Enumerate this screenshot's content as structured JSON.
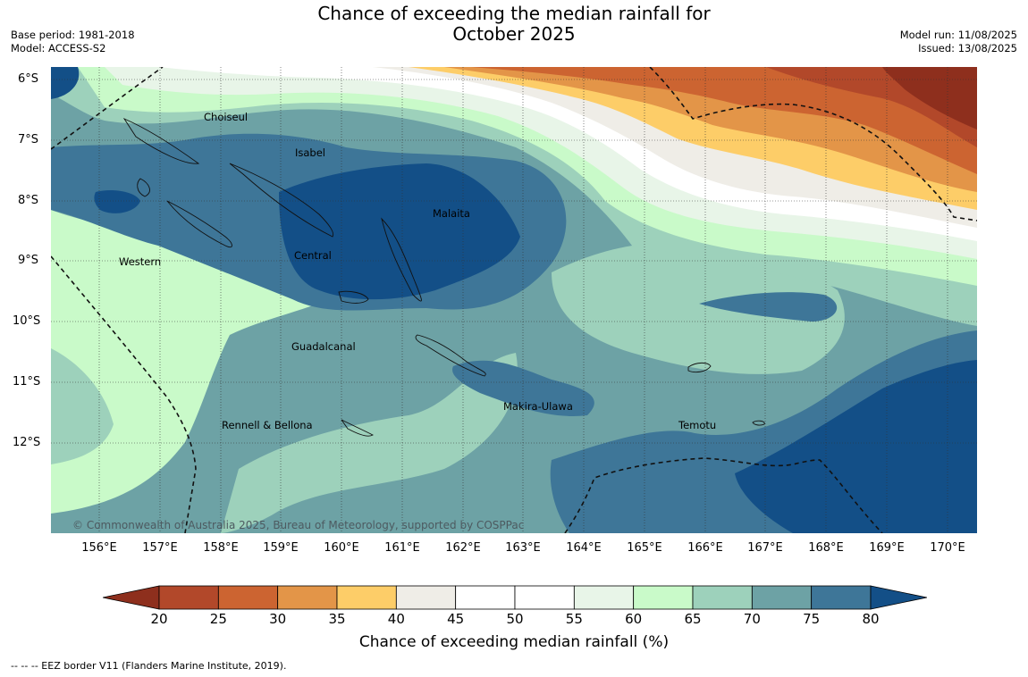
{
  "title": {
    "line1": "Chance of exceeding the median rainfall for",
    "line2": "October 2025"
  },
  "meta_left": {
    "base_period": "Base period: 1981-2018",
    "model": "Model: ACCESS-S2"
  },
  "meta_right": {
    "model_run": "Model run: 11/08/2025",
    "issued": "Issued: 13/08/2025"
  },
  "lat_labels": [
    "6°S",
    "7°S",
    "8°S",
    "9°S",
    "10°S",
    "11°S",
    "12°S"
  ],
  "lon_labels": [
    "156°E",
    "157°E",
    "158°E",
    "159°E",
    "160°E",
    "161°E",
    "162°E",
    "163°E",
    "164°E",
    "165°E",
    "166°E",
    "167°E",
    "168°E",
    "169°E",
    "170°E"
  ],
  "places": {
    "choiseul": "Choiseul",
    "isabel": "Isabel",
    "malaita": "Malaita",
    "central": "Central",
    "western": "Western",
    "guadalcanal": "Guadalcanal",
    "makira": "Makira-Ulawa",
    "temotu": "Temotu",
    "rennell": "Rennell & Bellona"
  },
  "copyright": "© Commonwealth of Australia 2025, Bureau of Meteorology, supported by COSPPac",
  "colorbar": {
    "ticks": [
      "20",
      "25",
      "30",
      "35",
      "40",
      "45",
      "50",
      "55",
      "60",
      "65",
      "70",
      "75",
      "80"
    ],
    "colors": [
      "#8e2f1d",
      "#b2482a",
      "#cc6431",
      "#e39548",
      "#fdcd68",
      "#efede7",
      "#ffffff",
      "#ffffff",
      "#e8f5e8",
      "#c9fac9",
      "#9dd1bb",
      "#6da2a5",
      "#3e7698",
      "#134f87"
    ],
    "label": "Chance of exceeding median rainfall (%)"
  },
  "legend_note": "--  --  -- EEZ border V11 (Flanders Marine Institute, 2019)."
}
